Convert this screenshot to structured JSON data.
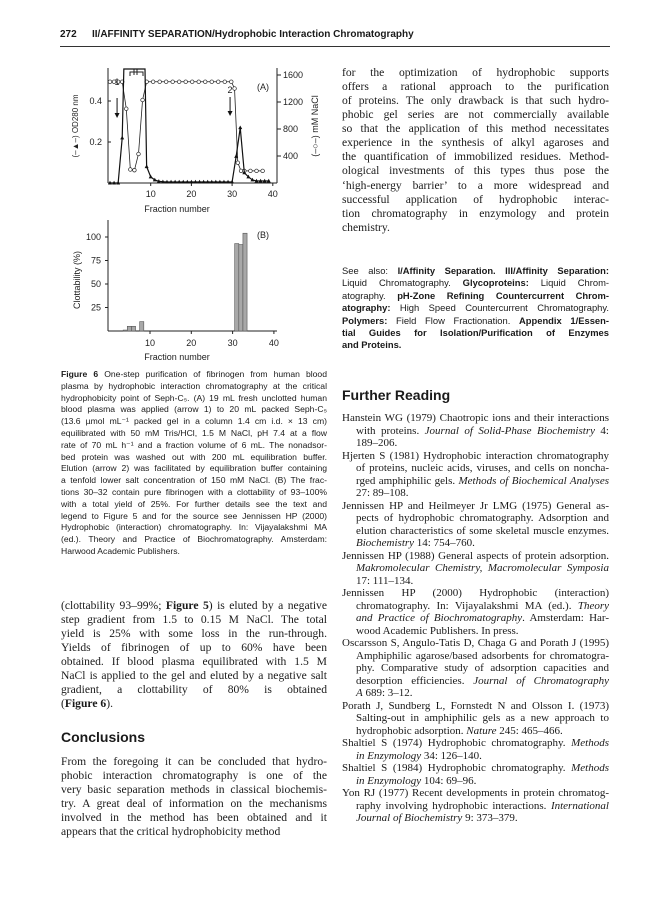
{
  "header": {
    "page_number": "272",
    "running_title": "II/AFFINITY SEPARATION/Hydrophobic Interaction Chromatography"
  },
  "chart_data": [
    {
      "type": "line",
      "panel_label": "(A)",
      "xlabel": "Fraction number",
      "ylabel_left": "(–▲–) OD280 nm",
      "ylabel_right": "(–○–) mM NaCl",
      "xlim": [
        0,
        40
      ],
      "ylim_left": [
        0,
        0.55
      ],
      "ylim_right": [
        0,
        1600
      ],
      "x_ticks": [
        "10",
        "20",
        "30",
        "40"
      ],
      "y_ticks_left": [
        "0.2",
        "0.4"
      ],
      "y_ticks_right": [
        "400",
        "800",
        "1200",
        "1600"
      ],
      "series": [
        {
          "marker": "triangle",
          "axis": "left",
          "x": [
            0,
            1,
            2,
            3,
            9,
            10,
            11,
            12,
            13,
            14,
            15,
            16,
            17,
            18,
            19,
            20,
            21,
            22,
            23,
            24,
            25,
            26,
            27,
            28,
            29,
            30,
            31,
            32,
            33,
            34,
            35,
            36,
            37,
            38,
            39
          ],
          "y": [
            0,
            0,
            0,
            0.22,
            0.08,
            0.03,
            0.015,
            0.008,
            0.006,
            0.005,
            0.005,
            0.005,
            0.005,
            0.005,
            0.005,
            0.005,
            0.005,
            0.005,
            0.005,
            0.005,
            0.005,
            0.005,
            0.005,
            0.005,
            0.005,
            0.005,
            0.13,
            0.27,
            0.05,
            0.03,
            0.015,
            0.01,
            0.01,
            0.01,
            0.01
          ],
          "off_scale_peak": [
            3,
            9
          ]
        },
        {
          "marker": "circle",
          "axis": "right",
          "x": [
            0,
            1,
            2,
            3,
            4,
            5,
            6,
            7,
            8,
            9,
            10.6,
            12.2,
            13.8,
            15.4,
            17,
            18.6,
            20.2,
            21.8,
            23.4,
            25,
            26.6,
            28.2,
            29.8,
            30.6,
            31.4,
            32.2,
            33,
            34.5,
            36,
            37.5
          ],
          "y": [
            1500,
            1500,
            1500,
            1500,
            1100,
            200,
            190,
            430,
            1230,
            1500,
            1500,
            1500,
            1500,
            1500,
            1500,
            1500,
            1500,
            1500,
            1500,
            1500,
            1500,
            1500,
            1500,
            1400,
            300,
            180,
            180,
            180,
            180,
            180
          ]
        }
      ],
      "annotations": [
        {
          "label": "1",
          "x": 1
        },
        {
          "label": "2",
          "x": 29.5
        }
      ]
    },
    {
      "type": "bar",
      "panel_label": "(B)",
      "xlabel": "Fraction number",
      "ylabel": "Clottability (%)",
      "xlim": [
        0,
        40
      ],
      "ylim": [
        0,
        115
      ],
      "x_ticks": [
        "10",
        "20",
        "30",
        "40"
      ],
      "y_ticks": [
        "25",
        "50",
        "75",
        "100"
      ],
      "x": [
        4,
        5,
        6,
        8,
        31,
        32,
        33
      ],
      "values": [
        1,
        5,
        5,
        10,
        93,
        92,
        104
      ],
      "bar_color": "#a8a8a8"
    }
  ],
  "caption": [
    [
      [
        "Figure 6",
        "b"
      ],
      [
        "   One-step purification of fibrinogen from human blood",
        ""
      ]
    ],
    [
      [
        "plasma by hydrophobic interaction chromatography at the critical",
        ""
      ]
    ],
    [
      [
        "hydrophobicity point of Seph-C₅. (A) 19 mL fresh unclotted human",
        ""
      ]
    ],
    [
      [
        "blood plasma was applied (arrow 1) to 20 mL packed Seph-C₅",
        ""
      ]
    ],
    [
      [
        "(13.6 µmol mL⁻¹ packed gel in a column 1.4 cm i.d. × 13 cm)",
        ""
      ]
    ],
    [
      [
        "equilibrated with 50 mM Tris/HCl, 1.5 M NaCl, pH 7.4 at a flow",
        ""
      ]
    ],
    [
      [
        "rate of 70 mL h⁻¹ and a fraction volume of 6 mL. The nonadsor-",
        ""
      ]
    ],
    [
      [
        "bed protein was washed out with 200 mL equilibration buffer.",
        ""
      ]
    ],
    [
      [
        "Elution (arrow 2) was facilitated by equilibration buffer containing",
        ""
      ]
    ],
    [
      [
        "a tenfold lower salt concentration of 150 mM NaCl. (B) The frac-",
        ""
      ]
    ],
    [
      [
        "tions 30–32 contain pure fibrinogen with a clottability of 93–100%",
        ""
      ]
    ],
    [
      [
        "with a total yield of 25%. For further details see the text and",
        ""
      ]
    ],
    [
      [
        "legend to Figure 5 and for the source see Jennissen HP (2000)",
        ""
      ]
    ],
    [
      [
        "Hydrophobic (interaction) chromatography. In: Vijayalakshmi MA",
        ""
      ]
    ],
    [
      [
        "(ed.). Theory and Practice of Biochromatography. Amsterdam:",
        ""
      ]
    ],
    [
      [
        "Harwood Academic Publishers.",
        ""
      ]
    ]
  ],
  "left_body": [
    [
      [
        "(clottability 93–99%; ",
        ""
      ],
      [
        "Figure 5",
        "b"
      ],
      [
        ") is eluted by a negative",
        ""
      ]
    ],
    [
      [
        "step gradient from 1.5 to 0.15 M NaCl. The total",
        ""
      ]
    ],
    [
      [
        "yield is 25% with some loss in the run-through.",
        ""
      ]
    ],
    [
      [
        "Yields of fibrinogen of up to 60% have been",
        ""
      ]
    ],
    [
      [
        "obtained. If blood plasma equilibrated with 1.5 M",
        ""
      ]
    ],
    [
      [
        "NaCl is applied to the gel and eluted by a negative salt",
        ""
      ]
    ],
    [
      [
        "gradient, a clottability of 80% is obtained",
        ""
      ]
    ],
    [
      [
        "(",
        ""
      ],
      [
        "Figure 6",
        "b"
      ],
      [
        ").",
        ""
      ]
    ]
  ],
  "conclusions": {
    "heading": "Conclusions",
    "lines": [
      [
        [
          "From the foregoing it can be concluded that hydro-",
          ""
        ]
      ],
      [
        [
          "phobic interaction chromatography is one of the",
          ""
        ]
      ],
      [
        [
          "very basic separation methods in classical biochemis-",
          ""
        ]
      ],
      [
        [
          "try. A great deal of information on the mechanisms",
          ""
        ]
      ],
      [
        [
          "involved in the method has been obtained and it",
          ""
        ]
      ],
      [
        [
          "appears that the critical hydrophobicity method",
          ""
        ]
      ]
    ]
  },
  "right_body": [
    [
      [
        "for the optimization of hydrophobic supports",
        ""
      ]
    ],
    [
      [
        "offers a rational approach to the purification",
        ""
      ]
    ],
    [
      [
        "of proteins. The only drawback is that such hydro-",
        ""
      ]
    ],
    [
      [
        "phobic gel series are not commercially available",
        ""
      ]
    ],
    [
      [
        "so that the application of this method necessitates",
        ""
      ]
    ],
    [
      [
        "experience in the synthesis of alkyl agaroses and",
        ""
      ]
    ],
    [
      [
        "the quantification of immobilized residues. Method-",
        ""
      ]
    ],
    [
      [
        "ological investments of this types thus pose the",
        ""
      ]
    ],
    [
      [
        "‘high-energy barrier’ to a more widespread and",
        ""
      ]
    ],
    [
      [
        "successful application of hydrophobic interac-",
        ""
      ]
    ],
    [
      [
        "tion chromatography in enzymology and protein",
        ""
      ]
    ],
    [
      [
        "chemistry.",
        ""
      ]
    ]
  ],
  "see_also": [
    [
      [
        "See also: ",
        ""
      ],
      [
        "I/Affinity Separation. III/Affinity Separation:",
        "b"
      ]
    ],
    [
      [
        "Liquid Chromatography. ",
        ""
      ],
      [
        "Glycoproteins:",
        "b"
      ],
      [
        " Liquid Chrom-",
        ""
      ]
    ],
    [
      [
        "atography. ",
        ""
      ],
      [
        "pH-Zone Refining Countercurrent Chrom-",
        "b"
      ]
    ],
    [
      [
        "atography:",
        "b"
      ],
      [
        " High Speed Countercurrent Chromatography.",
        ""
      ]
    ],
    [
      [
        "Polymers:",
        "b"
      ],
      [
        " Field Flow Fractionation. ",
        ""
      ],
      [
        "Appendix 1/Essen-",
        "b"
      ]
    ],
    [
      [
        "tial Guides for Isolation/Purification of Enzymes",
        "b"
      ]
    ],
    [
      [
        "and Proteins.",
        "b"
      ]
    ]
  ],
  "further_reading": {
    "heading": "Further Reading",
    "refs": [
      [
        [
          [
            "Hanstein WG (1979) Chaotropic ions and their interactions",
            ""
          ]
        ],
        [
          [
            "with proteins. ",
            ""
          ],
          [
            "Journal of Solid-Phase Biochemistry",
            "i"
          ],
          [
            " 4:",
            ""
          ]
        ],
        [
          [
            "189–206.",
            ""
          ]
        ]
      ],
      [
        [
          [
            "Hjerten S (1981) Hydrophobic interaction chromatography",
            ""
          ]
        ],
        [
          [
            "of proteins, nucleic acids, viruses, and cells on noncha-",
            ""
          ]
        ],
        [
          [
            "rged amphiphilic gels. ",
            ""
          ],
          [
            "Methods of Biochemical Analyses",
            "i"
          ]
        ],
        [
          [
            "27: 89–108.",
            ""
          ]
        ]
      ],
      [
        [
          [
            "Jennissen HP and Heilmeyer Jr LMG (1975) General as-",
            ""
          ]
        ],
        [
          [
            "pects of hydrophobic chromatography. Adsorption and",
            ""
          ]
        ],
        [
          [
            "elution characteristics of some skeletal muscle enzymes.",
            ""
          ]
        ],
        [
          [
            "Biochemistry",
            "i"
          ],
          [
            " 14: 754–760.",
            ""
          ]
        ]
      ],
      [
        [
          [
            "Jennissen HP (1988) General aspects of protein adsorption.",
            ""
          ]
        ],
        [
          [
            "Makromolecular Chemistry, Macromolecular Symposia",
            "i"
          ]
        ],
        [
          [
            "17: 111–134.",
            ""
          ]
        ]
      ],
      [
        [
          [
            "Jennissen HP (2000) Hydrophobic (interaction)",
            ""
          ]
        ],
        [
          [
            "chromatography. In: Vijayalakshmi MA (ed.). ",
            ""
          ],
          [
            "Theory",
            "i"
          ]
        ],
        [
          [
            "and Practice of Biochromatography",
            "i"
          ],
          [
            ". Amsterdam: Har-",
            ""
          ]
        ],
        [
          [
            "wood Academic Publishers. In press.",
            ""
          ]
        ]
      ],
      [
        [
          [
            "Oscarsson S, Angulo-Tatis D, Chaga G and Porath J (1995)",
            ""
          ]
        ],
        [
          [
            "Amphiphilic agarose/based adsorbents for chromatogra-",
            ""
          ]
        ],
        [
          [
            "phy. Comparative study of adsorption capacities and",
            ""
          ]
        ],
        [
          [
            "desorption efficiencies. ",
            ""
          ],
          [
            "Journal of Chromatography",
            "i"
          ]
        ],
        [
          [
            "A",
            "i"
          ],
          [
            " 689: 3–12.",
            ""
          ]
        ]
      ],
      [
        [
          [
            "Porath J, Sundberg L, Fornstedt N and Olsson I. (1973)",
            ""
          ]
        ],
        [
          [
            "Salting-out in amphiphilic gels as a new approach to",
            ""
          ]
        ],
        [
          [
            "hydrophobic adsorption. ",
            ""
          ],
          [
            "Nature",
            "i"
          ],
          [
            " 245: 465–466.",
            ""
          ]
        ]
      ],
      [
        [
          [
            "Shaltiel S (1974) Hydrophobic chromatography. ",
            ""
          ],
          [
            "Methods",
            "i"
          ]
        ],
        [
          [
            "in Enzymology",
            "i"
          ],
          [
            " 34: 126–140.",
            ""
          ]
        ]
      ],
      [
        [
          [
            "Shaltiel S (1984) Hydrophobic chromatography. ",
            ""
          ],
          [
            "Methods",
            "i"
          ]
        ],
        [
          [
            "in Enzymology",
            "i"
          ],
          [
            " 104: 69–96.",
            ""
          ]
        ]
      ],
      [
        [
          [
            "Yon RJ (1977) Recent developments in protein chromatog-",
            ""
          ]
        ],
        [
          [
            "raphy involving hydrophobic interactions. ",
            ""
          ],
          [
            "International",
            "i"
          ]
        ],
        [
          [
            "Journal of Biochemistry",
            "i"
          ],
          [
            " 9: 373–379.",
            ""
          ]
        ]
      ]
    ]
  }
}
